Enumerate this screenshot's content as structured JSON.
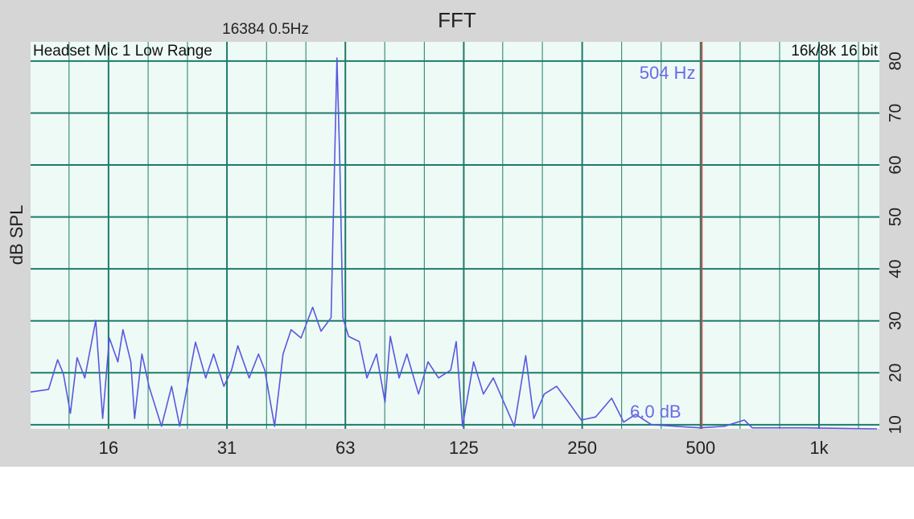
{
  "chart_data": {
    "type": "line",
    "title": "FFT",
    "subtitle": "16384  0.5Hz",
    "input_label": "Headset Mic 1 Low Range",
    "format_label": "16k/8k 16 bit",
    "y_label": "dB SPL",
    "floor_label": "6.0 dB",
    "marker": {
      "freq": 504,
      "label": "504 Hz",
      "color": "#e0443a"
    },
    "x_log": true,
    "xlim": [
      9.9,
      1424
    ],
    "ylim": [
      9.2,
      83.7
    ],
    "xticks": [
      {
        "value": 15.625,
        "label": "16"
      },
      {
        "value": 31.25,
        "label": "31"
      },
      {
        "value": 62.5,
        "label": "63"
      },
      {
        "value": 125,
        "label": "125"
      },
      {
        "value": 250,
        "label": "250"
      },
      {
        "value": 500,
        "label": "500"
      },
      {
        "value": 1000,
        "label": "1k"
      }
    ],
    "x_minor_grid": [
      12.4,
      19.7,
      24.8,
      39.4,
      49.6,
      78.7,
      99.2,
      157,
      198,
      315,
      397,
      630,
      794,
      1260
    ],
    "yticks": [
      10,
      20,
      30,
      40,
      50,
      60,
      70,
      80
    ],
    "grid": true,
    "series": [
      {
        "name": "Spectrum",
        "color": "#5858e0",
        "x": [
          9.9,
          11.0,
          11.6,
          12.0,
          12.5,
          13.0,
          13.6,
          14.5,
          15.1,
          15.7,
          16.5,
          17.0,
          17.8,
          18.2,
          19.0,
          19.8,
          21.3,
          22.6,
          23.7,
          26.0,
          27.6,
          28.9,
          30.7,
          32.1,
          33.3,
          35.6,
          37.6,
          39.0,
          41.3,
          43.4,
          45.5,
          48.2,
          51.6,
          54.2,
          57.5,
          59.5,
          60.5,
          61.6,
          63.7,
          67.8,
          70.9,
          75.0,
          78.8,
          81.3,
          85.6,
          89.6,
          95.9,
          101.4,
          107.8,
          115.8,
          119.6,
          124.1,
          132.4,
          140.2,
          148.6,
          158.1,
          168.0,
          179.6,
          188.3,
          200.3,
          215.2,
          231.0,
          248.6,
          270.4,
          297.1,
          318.8,
          341.8,
          375.2,
          432.2,
          498.3,
          574.4,
          645.8,
          676.7,
          918.7,
          1404
        ],
        "values": [
          16.3,
          16.8,
          22.5,
          19.8,
          12.2,
          22.9,
          19.0,
          30.1,
          11.2,
          26.7,
          22.1,
          28.3,
          22.1,
          11.2,
          23.6,
          17.4,
          9.7,
          17.4,
          9.7,
          25.9,
          19.0,
          23.6,
          17.4,
          20.5,
          25.2,
          19.0,
          23.6,
          20.5,
          9.7,
          23.6,
          28.3,
          26.7,
          32.6,
          28.0,
          30.6,
          80.6,
          60.8,
          30.6,
          27.0,
          26.0,
          19.0,
          23.6,
          14.3,
          27.0,
          19.0,
          23.6,
          15.9,
          22.1,
          19.0,
          20.5,
          26.0,
          9.7,
          22.1,
          15.9,
          19.0,
          14.3,
          9.7,
          23.3,
          11.2,
          15.9,
          17.4,
          14.3,
          10.9,
          11.5,
          15.1,
          10.5,
          12.0,
          10.0,
          9.7,
          9.4,
          9.7,
          10.9,
          9.4,
          9.4,
          9.2
        ]
      }
    ]
  }
}
